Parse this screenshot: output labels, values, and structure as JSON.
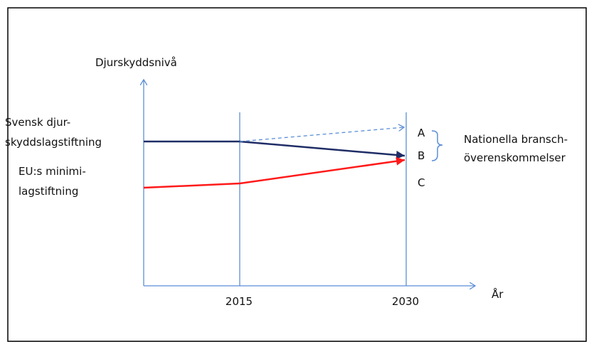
{
  "colors": {
    "axis": "#5B8ED6",
    "swedish_line": "#1F2D66",
    "eu_line": "#FF1A1A",
    "projection_dashed": "#5B8ED6",
    "text": "#111111",
    "frame": "#000000"
  },
  "labels": {
    "y_axis": "Djurskyddsnivå",
    "x_axis": "År",
    "swedish_line1": "Svensk djur-",
    "swedish_line2": "skyddslagstiftning",
    "eu_line1": "EU:s minimi-",
    "eu_line2": "lagstiftning",
    "level_a": "A",
    "level_b": "B",
    "level_c": "C",
    "bracket_line1": "Nationella bransch-",
    "bracket_line2": "överenskommelser"
  },
  "x_ticks": [
    "2015",
    "2030"
  ]
}
